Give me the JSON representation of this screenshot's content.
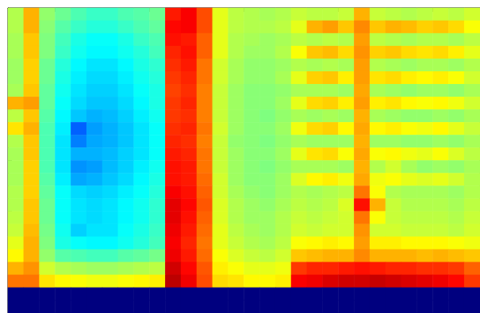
{
  "chart_data": {
    "type": "heatmap",
    "tick_labels": false,
    "zlim": [
      0,
      10
    ],
    "cells": [
      [
        5.5,
        7,
        5.2,
        4.8,
        4.5,
        4.3,
        4.3,
        4.5,
        4.6,
        4.8,
        8.5,
        8.8,
        8,
        6,
        5.6,
        5.5,
        5.4,
        5.5,
        5.7,
        5.6,
        5.6,
        5.7,
        7,
        5.7,
        5.6,
        5.5,
        5.6,
        5.7,
        5.6,
        5.8
      ],
      [
        5.5,
        7,
        5.1,
        4.6,
        4.3,
        4.1,
        4.1,
        4.3,
        4.5,
        4.7,
        8.7,
        8.8,
        8,
        6,
        5.6,
        5.5,
        5.5,
        5.6,
        6,
        7,
        7.2,
        6.8,
        7.4,
        6.8,
        7,
        6.9,
        6.7,
        6.8,
        6.6,
        6.2
      ],
      [
        5.4,
        6.8,
        5,
        4.4,
        4,
        3.8,
        3.8,
        4,
        4.3,
        4.5,
        8.6,
        8.5,
        7.8,
        6,
        5.5,
        5.4,
        5.3,
        5.4,
        5.6,
        5.5,
        5.6,
        5.5,
        7.2,
        5.6,
        5.5,
        5.4,
        5.5,
        5.5,
        5.4,
        5.6
      ],
      [
        5.4,
        6.8,
        5,
        4.3,
        3.9,
        3.7,
        3.7,
        3.9,
        4.1,
        4.4,
        8.4,
        8.6,
        7.8,
        6,
        5.5,
        5.3,
        5.3,
        5.5,
        6.2,
        6.8,
        6.9,
        6.6,
        7.3,
        6.7,
        6.8,
        6.6,
        6.5,
        6.6,
        6.4,
        6
      ],
      [
        5.3,
        6.7,
        4.8,
        4.1,
        3.7,
        3.5,
        3.5,
        3.7,
        4,
        4.2,
        8.3,
        8.5,
        7.6,
        5.8,
        5.4,
        5.2,
        5.2,
        5.3,
        5.5,
        5.4,
        5.5,
        5.4,
        7.2,
        5.5,
        5.4,
        5.3,
        5.4,
        5.4,
        5.3,
        5.5
      ],
      [
        5.3,
        6.7,
        4.8,
        4,
        3.6,
        3.4,
        3.4,
        3.6,
        3.9,
        4.1,
        8.2,
        8.4,
        7.6,
        5.8,
        5.4,
        5.2,
        5.2,
        5.4,
        6,
        6.7,
        6.8,
        6.4,
        7.2,
        6.5,
        6.6,
        6.4,
        6.3,
        6.4,
        6.2,
        5.8
      ],
      [
        5.4,
        6.8,
        4.7,
        3.9,
        3.5,
        3.3,
        3.3,
        3.5,
        3.8,
        4,
        8.1,
        8.3,
        7.5,
        5.7,
        5.3,
        5.1,
        5.1,
        5.2,
        5.4,
        5.4,
        5.4,
        5.3,
        7.1,
        5.4,
        5.3,
        5.2,
        5.3,
        5.3,
        5.2,
        5.4
      ],
      [
        7,
        7.2,
        4.7,
        3.8,
        3.4,
        3.2,
        3.2,
        3.4,
        3.7,
        4,
        8.2,
        8.4,
        7.5,
        5.7,
        5.3,
        5.1,
        5.1,
        5.3,
        6,
        6.6,
        6.7,
        6.4,
        7.2,
        6.4,
        6.5,
        6.3,
        6.2,
        6.3,
        6.1,
        5.8
      ],
      [
        5.6,
        6.8,
        4.6,
        3.7,
        3.2,
        3,
        3.1,
        3.3,
        3.6,
        3.9,
        8.2,
        8.3,
        7.5,
        5.7,
        5.3,
        5.1,
        5,
        5.2,
        5.4,
        5.3,
        5.4,
        5.3,
        7,
        5.4,
        5.3,
        5.2,
        5.2,
        5.3,
        5.2,
        5.4
      ],
      [
        6.5,
        7,
        4.5,
        3.6,
        2.2,
        2.8,
        3,
        3.2,
        3.5,
        3.8,
        8.3,
        8.4,
        7.6,
        5.8,
        5.3,
        5.1,
        5.1,
        5.3,
        6.1,
        6.6,
        6.7,
        6.3,
        7.1,
        6.3,
        6.4,
        6.2,
        6.1,
        6.3,
        6,
        5.7
      ],
      [
        5.5,
        6.8,
        4.5,
        3.5,
        2.5,
        2.9,
        3,
        3.2,
        3.5,
        3.8,
        8.4,
        8.3,
        7.5,
        5.7,
        5.2,
        5.1,
        5,
        5.2,
        5.4,
        5.3,
        5.3,
        5.3,
        7,
        5.3,
        5.3,
        5.2,
        5.2,
        5.3,
        5.2,
        5.4
      ],
      [
        5.4,
        6.8,
        4.5,
        3.5,
        3,
        3,
        3.1,
        3.3,
        3.5,
        3.8,
        8.5,
        8.4,
        7.6,
        5.7,
        5.3,
        5.1,
        5.1,
        5.3,
        6,
        6.5,
        6.6,
        6.2,
        7.1,
        6.2,
        6.3,
        6.1,
        6,
        6.2,
        5.9,
        5.6
      ],
      [
        5.4,
        6.7,
        4.5,
        3.5,
        2.7,
        2.8,
        3.1,
        3.3,
        3.6,
        3.9,
        8.6,
        8.5,
        7.6,
        5.7,
        5.3,
        5.1,
        5,
        5.2,
        5.4,
        5.4,
        5.4,
        5.3,
        7,
        5.5,
        5.8,
        5.4,
        5.2,
        5.3,
        5.2,
        5.4
      ],
      [
        5.4,
        6.7,
        4.6,
        3.6,
        2.9,
        3,
        3.2,
        3.4,
        3.7,
        4,
        8.6,
        8.5,
        7.7,
        5.8,
        5.3,
        5.1,
        5.1,
        5.3,
        5.9,
        6.3,
        6.4,
        6.1,
        7.1,
        6.1,
        6.2,
        6,
        5.9,
        6,
        5.8,
        5.5
      ],
      [
        5.5,
        6.7,
        4.7,
        3.8,
        3.4,
        3.3,
        3.4,
        3.6,
        3.8,
        4.1,
        8.8,
        8.6,
        7.8,
        5.8,
        5.4,
        5.2,
        5.1,
        5.3,
        5.5,
        5.4,
        5.5,
        5.6,
        7.6,
        6.2,
        5.5,
        5.4,
        5.4,
        5.4,
        5.3,
        5.5
      ],
      [
        5.5,
        6.8,
        4.8,
        3.8,
        3.5,
        3.4,
        3.5,
        3.7,
        3.9,
        4.2,
        9,
        8.7,
        7.9,
        5.9,
        5.5,
        5.3,
        5.2,
        5.4,
        5.6,
        5.5,
        5.6,
        5.9,
        8.6,
        7,
        5.7,
        5.5,
        5.5,
        5.5,
        5.4,
        5.6
      ],
      [
        5.6,
        6.8,
        4.8,
        3.8,
        3.5,
        3.4,
        3.5,
        3.7,
        3.9,
        4.2,
        9,
        8.6,
        7.8,
        5.9,
        5.5,
        5.3,
        5.3,
        5.5,
        5.7,
        5.6,
        5.7,
        5.8,
        7.6,
        6.2,
        5.7,
        5.6,
        5.6,
        5.6,
        5.5,
        5.7
      ],
      [
        5.7,
        6.9,
        4.9,
        3.9,
        3.3,
        3.5,
        3.5,
        3.8,
        4,
        4.3,
        8.9,
        8.5,
        7.7,
        6,
        5.6,
        5.4,
        5.3,
        5.5,
        5.8,
        5.7,
        5.8,
        5.8,
        7.3,
        5.8,
        5.8,
        5.7,
        5.7,
        5.7,
        5.6,
        5.8
      ],
      [
        6,
        7,
        5,
        4,
        3.8,
        3.7,
        3.7,
        3.9,
        4.1,
        4.4,
        8.8,
        8.4,
        7.6,
        6,
        5.7,
        5.5,
        5.4,
        5.6,
        6.2,
        6.3,
        6.4,
        6.3,
        7.2,
        6.4,
        6.4,
        6.3,
        6.3,
        6.3,
        6.2,
        6.1
      ],
      [
        6.3,
        7,
        5.2,
        4.6,
        4.5,
        4.4,
        4.4,
        4.6,
        4.7,
        4.9,
        8.9,
        8.5,
        7.7,
        6.2,
        5.9,
        5.7,
        5.6,
        5.8,
        6.8,
        6.9,
        7,
        7,
        7.4,
        7,
        7,
        7,
        6.9,
        7,
        6.9,
        6.8
      ],
      [
        7,
        7.3,
        5.8,
        5.5,
        5.4,
        5.3,
        5.3,
        5.4,
        5.5,
        5.6,
        9.2,
        8.7,
        7.9,
        6.4,
        6.2,
        6,
        6,
        6.1,
        8.2,
        8.4,
        8.4,
        8.5,
        8.6,
        8.5,
        8.4,
        8.4,
        8.3,
        8.3,
        8.2,
        7.8
      ],
      [
        7.6,
        7.6,
        6.5,
        6.3,
        6.2,
        6.1,
        6.1,
        6.2,
        6.3,
        6.4,
        9.4,
        8.9,
        8,
        6.6,
        6.5,
        6.3,
        6.3,
        6.4,
        8.8,
        8.9,
        9.1,
        9.2,
        9.2,
        9.3,
        9.2,
        9.1,
        9,
        8.9,
        8.7,
        8.2
      ],
      [
        0,
        0,
        0,
        0,
        0,
        0,
        0,
        0,
        0,
        0,
        0,
        0,
        0,
        0,
        0,
        0,
        0,
        0,
        0,
        0,
        0,
        0,
        0,
        0,
        0,
        0,
        0,
        0,
        0,
        0
      ],
      [
        0,
        0,
        0,
        0,
        0,
        0,
        0,
        0,
        0,
        0,
        0,
        0,
        0,
        0,
        0,
        0,
        0,
        0,
        0,
        0,
        0,
        0,
        0,
        0,
        0,
        0,
        0,
        0,
        0,
        0
      ]
    ]
  }
}
